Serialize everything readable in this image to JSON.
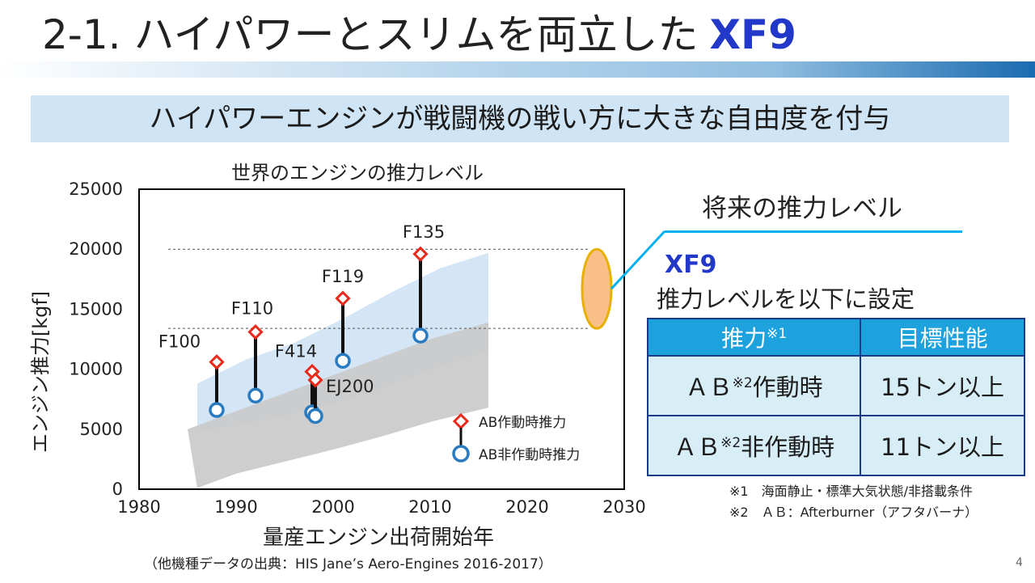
{
  "slide": {
    "title": "2-1. ハイパワーとスリムを両立した",
    "title_brand": "XF9",
    "subtitle": "ハイパワーエンジンが戦闘機の戦い方に大きな自由度を付与",
    "page_number": "4",
    "source": "（他機種データの出典：HIS Jane’s Aero-Engines 2016-2017）"
  },
  "right_panel": {
    "future_label": "将来の推力レベル",
    "xf9_label": "XF9",
    "setting_label": "推力レベルを以下に設定",
    "table": {
      "headers": [
        "推力",
        "目標性能"
      ],
      "header_sup": "※1",
      "rows": [
        {
          "prefix": "ＡＢ",
          "sup": "※2",
          "suffix": "作動時",
          "value": "15トン以上"
        },
        {
          "prefix": "ＡＢ",
          "sup": "※2",
          "suffix": "非作動時",
          "value": "11トン以上"
        }
      ]
    },
    "notes": [
      "※1　海面静止・標準大気状態/非搭載条件",
      "※2　ＡＢ：Afterburner（アフタバーナ）"
    ]
  },
  "colors": {
    "ab_on": "#e8291c",
    "ab_off": "#2a7ac0",
    "brand": "#2238c8",
    "band_light": "#cfe2f4",
    "band_gray": "#c9c9c9",
    "xf9_ellipse": "#f8c088",
    "xf9_ellipse_stroke": "#e8b000",
    "callout": "#00b0f0"
  },
  "chart_data": {
    "type": "scatter",
    "title": "世界のエンジンの推力レベル",
    "xlabel": "量産エンジン出荷開始年",
    "ylabel": "エンジン推力[kgf]",
    "xlim": [
      1980,
      2030
    ],
    "ylim": [
      0,
      25000
    ],
    "xticks": [
      1980,
      1990,
      2000,
      2010,
      2020,
      2030
    ],
    "yticks": [
      0,
      5000,
      10000,
      15000,
      20000,
      25000
    ],
    "grid": false,
    "legend_position": "bottom-right",
    "series": [
      {
        "name": "AB作動時推力",
        "marker": "diamond"
      },
      {
        "name": "AB非作動時推力",
        "marker": "circle"
      }
    ],
    "engines": [
      {
        "label": "F100",
        "x": 1988,
        "ab_on": 10600,
        "ab_off": 6600
      },
      {
        "label": "F110",
        "x": 1992,
        "ab_on": 13100,
        "ab_off": 7800
      },
      {
        "label": "F414",
        "x": 1998,
        "ab_on": 9800,
        "ab_off": 6400
      },
      {
        "label": "EJ200",
        "x": 1998,
        "ab_on": 9100,
        "ab_off": 6100
      },
      {
        "label": "F119",
        "x": 2001,
        "ab_on": 15900,
        "ab_off": 10700
      },
      {
        "label": "F135",
        "x": 2009,
        "ab_on": 19600,
        "ab_off": 12800
      }
    ],
    "reference_lines": [
      20000,
      13400
    ],
    "xf9_range": {
      "x": 2027,
      "y_low": 13400,
      "y_high": 20000
    }
  }
}
